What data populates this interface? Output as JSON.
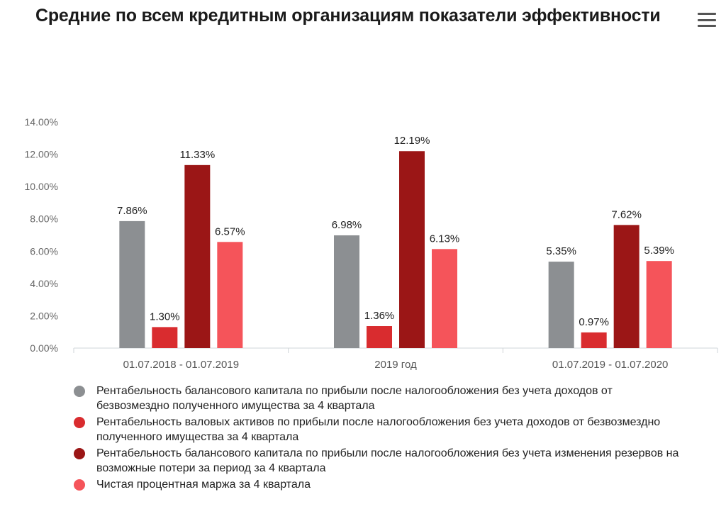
{
  "header": {
    "title": "Средние по всем кредитным организациям показатели эффективности",
    "menu_icon": "hamburger-menu-icon"
  },
  "chart_data": {
    "type": "bar",
    "title": "Средние по всем кредитным организациям показатели эффективности",
    "categories": [
      "01.07.2018 - 01.07.2019",
      "2019 год",
      "01.07.2019 - 01.07.2020"
    ],
    "ylim": [
      0,
      14
    ],
    "yticks": [
      0,
      2,
      4,
      6,
      8,
      10,
      12,
      14
    ],
    "ytick_labels": [
      "0.00%",
      "2.00%",
      "4.00%",
      "6.00%",
      "8.00%",
      "10.00%",
      "12.00%",
      "14.00%"
    ],
    "xlabel": "",
    "ylabel": "",
    "grid": false,
    "series": [
      {
        "name": "Рентабельность балансового капитала по прибыли после налогообложения без учета доходов от безвозмездно полученного имущества за 4 квартала",
        "color": "#8c8f92",
        "values": [
          7.86,
          6.98,
          5.35
        ],
        "labels": [
          "7.86%",
          "6.98%",
          "5.35%"
        ]
      },
      {
        "name": "Рентабельность валовых активов по прибыли после налогообложения без учета доходов от безвозмездно полученного имущества за 4 квартала",
        "color": "#d92c2f",
        "values": [
          1.3,
          1.36,
          0.97
        ],
        "labels": [
          "1.30%",
          "1.36%",
          "0.97%"
        ]
      },
      {
        "name": "Рентабельность балансового капитала по прибыли после налогообложения без учета изменения резервов на возможные потери за период за 4 квартала",
        "color": "#9b1616",
        "values": [
          11.33,
          12.19,
          7.62
        ],
        "labels": [
          "11.33%",
          "12.19%",
          "7.62%"
        ]
      },
      {
        "name": "Чистая процентная маржа за 4 квартала",
        "color": "#f5545a",
        "values": [
          6.57,
          6.13,
          5.39
        ],
        "labels": [
          "6.57%",
          "6.13%",
          "5.39%"
        ]
      }
    ],
    "legend": [
      "Рентабельность балансового капитала по прибыли после налогообложения без учета доходов от безвозмездно полученного имущества за 4 квартала",
      "Рентабельность валовых активов по прибыли после налогообложения без учета доходов от безвозмездно полученного имущества за 4 квартала",
      "Рентабельность балансового капитала по прибыли после налогообложения без учета изменения резервов на возможные потери за период за 4 квартала",
      "Чистая процентная маржа за 4 квартала"
    ],
    "legend_position": "bottom"
  }
}
